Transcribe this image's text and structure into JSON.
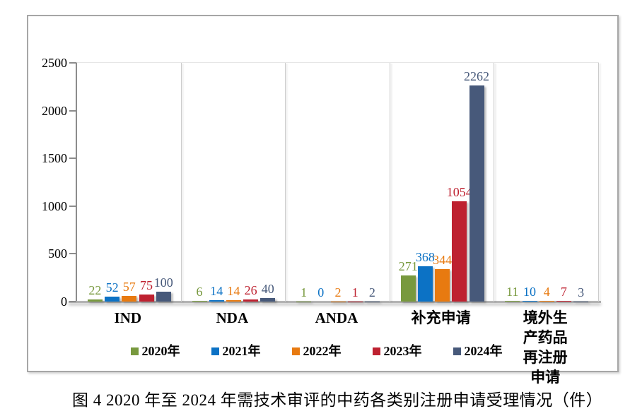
{
  "figure": {
    "caption": "图 4  2020 年至 2024 年需技术审评的中药各类别注册申请受理情况（件）"
  },
  "chart_data": {
    "type": "bar",
    "title": "",
    "categories": [
      "IND",
      "NDA",
      "ANDA",
      "补充申请",
      "境外生产药品\n再注册申请"
    ],
    "series": [
      {
        "name": "2020年",
        "color": "#78993e",
        "values": [
          22,
          6,
          1,
          271,
          11
        ]
      },
      {
        "name": "2021年",
        "color": "#0c72c5",
        "values": [
          52,
          14,
          0,
          368,
          10
        ]
      },
      {
        "name": "2022年",
        "color": "#e87a10",
        "values": [
          57,
          14,
          2,
          344,
          4
        ]
      },
      {
        "name": "2023年",
        "color": "#be2130",
        "values": [
          75,
          26,
          1,
          1054,
          7
        ]
      },
      {
        "name": "2024年",
        "color": "#47597a",
        "values": [
          100,
          40,
          2,
          2262,
          3
        ]
      }
    ],
    "ylim": [
      0,
      2500
    ],
    "yticks": [
      0,
      500,
      1000,
      1500,
      2000,
      2500
    ],
    "ylabel": "",
    "xlabel": "",
    "legend_position": "bottom",
    "value_labels": true,
    "grid": "vertical-category-dividers"
  }
}
